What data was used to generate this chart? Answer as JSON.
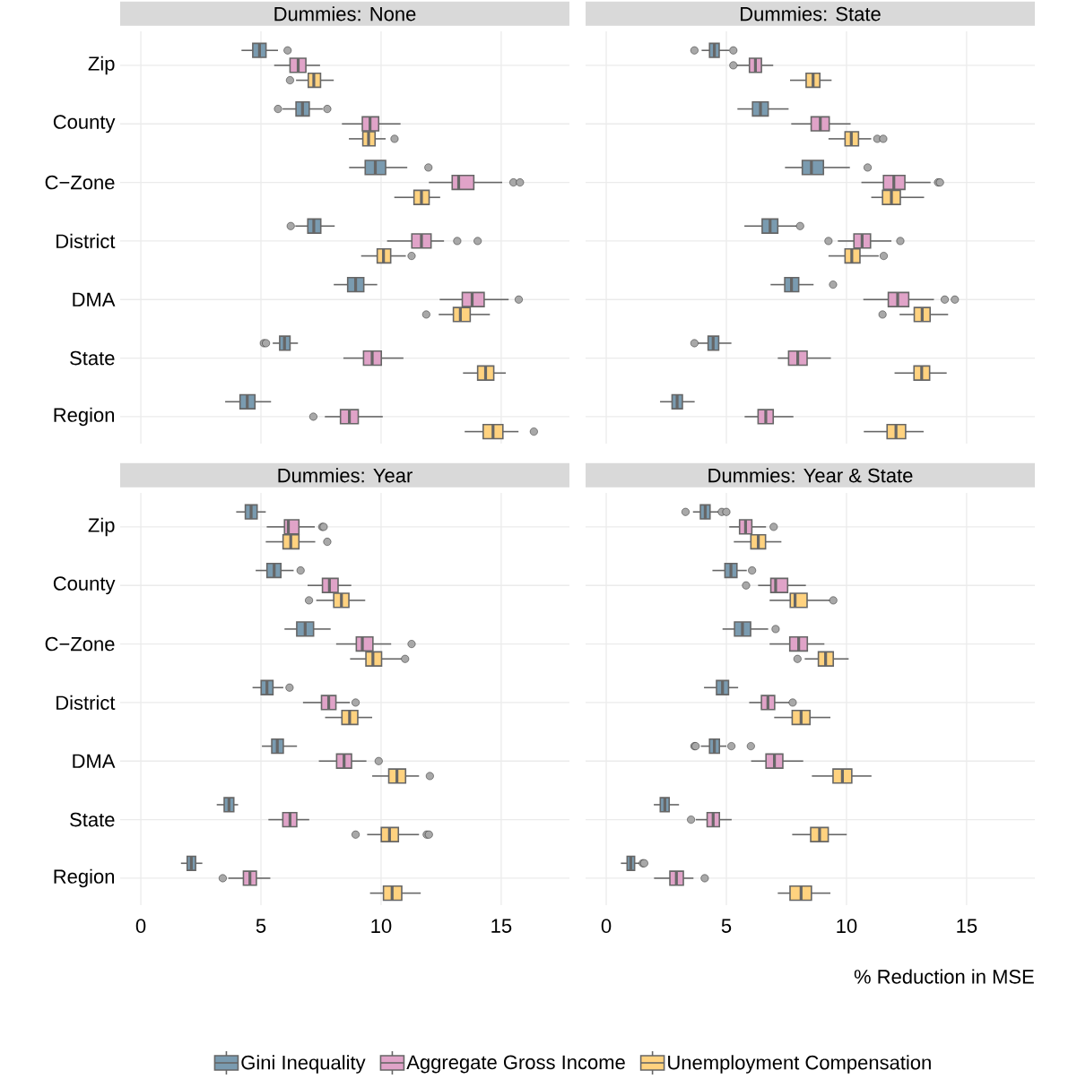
{
  "chart_data": [
    {
      "type": "box",
      "title": "Dummies: None",
      "orientation": "horizontal",
      "categories": [
        "Zip",
        "County",
        "C−Zone",
        "District",
        "DMA",
        "State",
        "Region"
      ],
      "xlim": [
        -0.86,
        17.84
      ],
      "xticks": [
        0,
        5,
        10,
        15
      ],
      "grid": true,
      "tick_labels": "y",
      "series": [
        {
          "color": "#7a9bb0",
          "boxes": [
            {
              "low": 4.19,
              "q1": 4.66,
              "median": 4.94,
              "q3": 5.21,
              "high": 5.71,
              "outliers": [
                6.11
              ]
            },
            {
              "low": 5.9,
              "q1": 6.46,
              "median": 6.73,
              "q3": 7.01,
              "high": 7.57,
              "outliers": [
                5.71,
                7.76
              ]
            },
            {
              "low": 8.67,
              "q1": 9.34,
              "median": 9.76,
              "q3": 10.19,
              "high": 11.09,
              "outliers": [
                11.97
              ]
            },
            {
              "low": 6.43,
              "q1": 6.95,
              "median": 7.2,
              "q3": 7.49,
              "high": 8.07,
              "outliers": [
                6.24
              ]
            },
            {
              "low": 8.03,
              "q1": 8.61,
              "median": 8.94,
              "q3": 9.28,
              "high": 9.84
            },
            {
              "low": 5.49,
              "q1": 5.78,
              "median": 5.98,
              "q3": 6.21,
              "high": 6.54,
              "outliers": [
                5.12,
                5.21
              ]
            },
            {
              "low": 3.51,
              "q1": 4.13,
              "median": 4.43,
              "q3": 4.75,
              "high": 5.42
            }
          ]
        },
        {
          "color": "#e0a3c8",
          "boxes": [
            {
              "low": 5.55,
              "q1": 6.21,
              "median": 6.55,
              "q3": 6.87,
              "high": 7.46
            },
            {
              "low": 8.37,
              "q1": 9.22,
              "median": 9.54,
              "q3": 9.9,
              "high": 10.81
            },
            {
              "low": 11.99,
              "q1": 12.96,
              "median": 13.23,
              "q3": 13.86,
              "high": 15.04,
              "outliers": [
                15.51,
                15.78
              ]
            },
            {
              "low": 10.25,
              "q1": 11.28,
              "median": 11.68,
              "q3": 12.08,
              "high": 12.62,
              "outliers": [
                13.17,
                14.02
              ]
            },
            {
              "low": 12.44,
              "q1": 13.38,
              "median": 13.79,
              "q3": 14.29,
              "high": 15.31,
              "outliers": [
                15.73
              ]
            },
            {
              "low": 8.43,
              "q1": 9.27,
              "median": 9.63,
              "q3": 10.01,
              "high": 10.93
            },
            {
              "low": 7.66,
              "q1": 8.31,
              "median": 8.68,
              "q3": 9.05,
              "high": 10.07,
              "outliers": [
                7.18
              ]
            }
          ]
        },
        {
          "color": "#ffd27f",
          "boxes": [
            {
              "low": 6.46,
              "q1": 6.97,
              "median": 7.2,
              "q3": 7.48,
              "high": 8.03,
              "outliers": [
                6.21
              ]
            },
            {
              "low": 8.66,
              "q1": 9.24,
              "median": 9.48,
              "q3": 9.75,
              "high": 10.19,
              "outliers": [
                10.56
              ]
            },
            {
              "low": 10.55,
              "q1": 11.37,
              "median": 11.68,
              "q3": 12.0,
              "high": 12.46
            },
            {
              "low": 9.17,
              "q1": 9.84,
              "median": 10.1,
              "q3": 10.4,
              "high": 11.03,
              "outliers": [
                11.27
              ]
            },
            {
              "low": 12.4,
              "q1": 13.01,
              "median": 13.3,
              "q3": 13.71,
              "high": 14.53,
              "outliers": [
                11.88
              ]
            },
            {
              "low": 13.41,
              "q1": 14.02,
              "median": 14.35,
              "q3": 14.69,
              "high": 15.19
            },
            {
              "low": 13.48,
              "q1": 14.25,
              "median": 14.66,
              "q3": 15.07,
              "high": 15.72,
              "outliers": [
                16.36
              ]
            }
          ]
        }
      ]
    },
    {
      "type": "box",
      "title": "Dummies: State",
      "orientation": "horizontal",
      "categories": [
        null,
        null,
        null,
        null,
        null,
        null,
        null
      ],
      "xlim": [
        -0.86,
        17.84
      ],
      "xticks": [
        0,
        5,
        10,
        15
      ],
      "grid": true,
      "tick_labels": false,
      "series": [
        {
          "color": "#7a9bb0",
          "boxes": [
            {
              "low": 3.97,
              "q1": 4.3,
              "median": 4.5,
              "q3": 4.7,
              "high": 5.12,
              "outliers": [
                3.67,
                5.29
              ]
            },
            {
              "low": 5.46,
              "q1": 6.09,
              "median": 6.42,
              "q3": 6.74,
              "high": 7.59
            },
            {
              "low": 7.44,
              "q1": 8.16,
              "median": 8.54,
              "q3": 9.04,
              "high": 10.14,
              "outliers": [
                10.88
              ]
            },
            {
              "low": 5.75,
              "q1": 6.49,
              "median": 6.82,
              "q3": 7.14,
              "high": 7.92,
              "outliers": [
                8.07
              ]
            },
            {
              "low": 6.84,
              "q1": 7.43,
              "median": 7.71,
              "q3": 8.01,
              "high": 8.63,
              "outliers": [
                9.44
              ]
            },
            {
              "low": 3.82,
              "q1": 4.24,
              "median": 4.45,
              "q3": 4.68,
              "high": 5.21,
              "outliers": [
                3.67
              ]
            },
            {
              "low": 2.24,
              "q1": 2.74,
              "median": 2.95,
              "q3": 3.17,
              "high": 3.68
            }
          ]
        },
        {
          "color": "#e0a3c8",
          "boxes": [
            {
              "low": 5.44,
              "q1": 5.96,
              "median": 6.21,
              "q3": 6.46,
              "high": 6.95,
              "outliers": [
                5.29
              ]
            },
            {
              "low": 7.7,
              "q1": 8.53,
              "median": 8.91,
              "q3": 9.28,
              "high": 10.17
            },
            {
              "low": 10.62,
              "q1": 11.54,
              "median": 11.97,
              "q3": 12.43,
              "high": 13.5,
              "outliers": [
                13.81,
                13.89
              ]
            },
            {
              "low": 9.64,
              "q1": 10.31,
              "median": 10.65,
              "q3": 11.0,
              "high": 11.87,
              "outliers": [
                9.25,
                12.24
              ]
            },
            {
              "low": 10.7,
              "q1": 11.74,
              "median": 12.13,
              "q3": 12.59,
              "high": 13.64,
              "outliers": [
                14.09,
                14.51
              ]
            },
            {
              "low": 7.14,
              "q1": 7.59,
              "median": 7.97,
              "q3": 8.36,
              "high": 9.35
            },
            {
              "low": 5.76,
              "q1": 6.32,
              "median": 6.64,
              "q3": 6.95,
              "high": 7.79
            }
          ]
        },
        {
          "color": "#ffd27f",
          "boxes": [
            {
              "low": 7.65,
              "q1": 8.32,
              "median": 8.61,
              "q3": 8.89,
              "high": 9.38
            },
            {
              "low": 9.25,
              "q1": 9.94,
              "median": 10.2,
              "q3": 10.5,
              "high": 11.03,
              "outliers": [
                11.28,
                11.53
              ]
            },
            {
              "low": 11.03,
              "q1": 11.5,
              "median": 11.87,
              "q3": 12.24,
              "high": 13.23
            },
            {
              "low": 9.25,
              "q1": 9.94,
              "median": 10.22,
              "q3": 10.56,
              "high": 11.34,
              "outliers": [
                11.55
              ]
            },
            {
              "low": 12.21,
              "q1": 12.82,
              "median": 13.15,
              "q3": 13.48,
              "high": 14.23,
              "outliers": [
                11.5
              ]
            },
            {
              "low": 12.0,
              "q1": 12.81,
              "median": 13.13,
              "q3": 13.46,
              "high": 14.17
            },
            {
              "low": 10.72,
              "q1": 11.69,
              "median": 12.06,
              "q3": 12.46,
              "high": 13.21
            }
          ]
        }
      ]
    },
    {
      "type": "box",
      "title": "Dummies: Year",
      "orientation": "horizontal",
      "categories": [
        "Zip",
        "County",
        "C−Zone",
        "District",
        "DMA",
        "State",
        "Region"
      ],
      "xlim": [
        -0.86,
        17.84
      ],
      "xticks": [
        0,
        5,
        10,
        15
      ],
      "grid": true,
      "series": [
        {
          "color": "#7a9bb0",
          "boxes": [
            {
              "low": 3.97,
              "q1": 4.35,
              "median": 4.59,
              "q3": 4.84,
              "high": 5.2
            },
            {
              "low": 4.78,
              "q1": 5.25,
              "median": 5.55,
              "q3": 5.83,
              "high": 6.36,
              "outliers": [
                6.65
              ]
            },
            {
              "low": 5.98,
              "q1": 6.49,
              "median": 6.84,
              "q3": 7.19,
              "high": 7.9
            },
            {
              "low": 4.65,
              "q1": 5.01,
              "median": 5.25,
              "q3": 5.5,
              "high": 5.93,
              "outliers": [
                6.19
              ]
            },
            {
              "low": 5.04,
              "q1": 5.45,
              "median": 5.68,
              "q3": 5.93,
              "high": 6.5
            },
            {
              "low": 3.16,
              "q1": 3.47,
              "median": 3.67,
              "q3": 3.87,
              "high": 4.05
            },
            {
              "low": 1.67,
              "q1": 1.93,
              "median": 2.1,
              "q3": 2.28,
              "high": 2.56
            }
          ]
        },
        {
          "color": "#e0a3c8",
          "boxes": [
            {
              "low": 5.24,
              "q1": 5.98,
              "median": 6.14,
              "q3": 6.58,
              "high": 7.24,
              "outliers": [
                7.55,
                7.61
              ]
            },
            {
              "low": 6.94,
              "q1": 7.56,
              "median": 7.85,
              "q3": 8.21,
              "high": 8.76
            },
            {
              "low": 8.13,
              "q1": 8.97,
              "median": 9.22,
              "q3": 9.66,
              "high": 10.42,
              "outliers": [
                11.27
              ]
            },
            {
              "low": 6.75,
              "q1": 7.52,
              "median": 7.82,
              "q3": 8.12,
              "high": 8.7,
              "outliers": [
                8.94
              ]
            },
            {
              "low": 7.41,
              "q1": 8.15,
              "median": 8.46,
              "q3": 8.77,
              "high": 9.39,
              "outliers": [
                9.9
              ]
            },
            {
              "low": 5.31,
              "q1": 5.91,
              "median": 6.21,
              "q3": 6.49,
              "high": 7.01
            },
            {
              "low": 3.64,
              "q1": 4.27,
              "median": 4.54,
              "q3": 4.81,
              "high": 5.39,
              "outliers": [
                3.41
              ]
            }
          ]
        },
        {
          "color": "#ffd27f",
          "boxes": [
            {
              "low": 5.2,
              "q1": 5.92,
              "median": 6.24,
              "q3": 6.58,
              "high": 7.26,
              "outliers": [
                7.76
              ]
            },
            {
              "low": 7.3,
              "q1": 8.03,
              "median": 8.35,
              "q3": 8.66,
              "high": 9.34,
              "outliers": [
                7.0
              ]
            },
            {
              "low": 8.71,
              "q1": 9.37,
              "median": 9.66,
              "q3": 10.02,
              "high": 10.85,
              "outliers": [
                11.0
              ]
            },
            {
              "low": 7.67,
              "q1": 8.37,
              "median": 8.69,
              "q3": 9.03,
              "high": 9.63
            },
            {
              "low": 9.63,
              "q1": 10.32,
              "median": 10.66,
              "q3": 11.02,
              "high": 11.58,
              "outliers": [
                12.03
              ]
            },
            {
              "low": 9.42,
              "q1": 10.01,
              "median": 10.35,
              "q3": 10.72,
              "high": 11.58,
              "outliers": [
                8.94,
                11.9,
                11.99
              ]
            },
            {
              "low": 9.54,
              "q1": 10.1,
              "median": 10.46,
              "q3": 10.86,
              "high": 11.65
            }
          ]
        }
      ]
    },
    {
      "type": "box",
      "title": "Dummies: Year & State",
      "xlabel": "% Reduction in MSE",
      "orientation": "horizontal",
      "categories": [
        null,
        null,
        null,
        null,
        null,
        null,
        null
      ],
      "xlim": [
        -0.86,
        17.84
      ],
      "xticks": [
        0,
        5,
        10,
        15
      ],
      "grid": true,
      "tick_labels": "x",
      "legend": "bottom",
      "series": [
        {
          "name": "Gini Inequality",
          "color": "#7a9bb0",
          "boxes": [
            {
              "low": 3.61,
              "q1": 3.92,
              "median": 4.12,
              "q3": 4.32,
              "high": 4.75,
              "outliers": [
                3.3,
                4.81,
                5.0
              ]
            },
            {
              "low": 4.42,
              "q1": 4.94,
              "median": 5.19,
              "q3": 5.44,
              "high": 5.85,
              "outliers": [
                6.07
              ]
            },
            {
              "low": 4.84,
              "q1": 5.34,
              "median": 5.67,
              "q3": 6.01,
              "high": 6.74,
              "outliers": [
                7.05
              ]
            },
            {
              "low": 4.07,
              "q1": 4.59,
              "median": 4.84,
              "q3": 5.09,
              "high": 5.49
            },
            {
              "low": 3.94,
              "q1": 4.3,
              "median": 4.5,
              "q3": 4.71,
              "high": 5.0,
              "outliers": [
                3.67,
                3.72,
                5.21,
                6.02
              ]
            },
            {
              "low": 1.98,
              "q1": 2.25,
              "median": 2.44,
              "q3": 2.62,
              "high": 3.03
            },
            {
              "low": 0.61,
              "q1": 0.87,
              "median": 1.02,
              "q3": 1.18,
              "high": 1.39,
              "outliers": [
                1.52,
                1.58
              ]
            }
          ]
        },
        {
          "name": "Aggregate Gross Income",
          "color": "#e0a3c8",
          "boxes": [
            {
              "low": 5.12,
              "q1": 5.55,
              "median": 5.8,
              "q3": 6.06,
              "high": 6.65,
              "outliers": [
                6.97
              ]
            },
            {
              "low": 6.32,
              "q1": 6.85,
              "median": 7.05,
              "q3": 7.55,
              "high": 8.31,
              "outliers": [
                5.82
              ]
            },
            {
              "low": 6.8,
              "q1": 7.64,
              "median": 8.01,
              "q3": 8.37,
              "high": 9.08
            },
            {
              "low": 5.95,
              "q1": 6.46,
              "median": 6.73,
              "q3": 7.01,
              "high": 7.61,
              "outliers": [
                7.76
              ]
            },
            {
              "low": 6.03,
              "q1": 6.65,
              "median": 7.0,
              "q3": 7.35,
              "high": 8.2
            },
            {
              "low": 3.73,
              "q1": 4.2,
              "median": 4.45,
              "q3": 4.71,
              "high": 5.22,
              "outliers": [
                3.53
              ]
            },
            {
              "low": 1.99,
              "q1": 2.65,
              "median": 2.92,
              "q3": 3.21,
              "high": 3.63,
              "outliers": [
                4.1
              ]
            }
          ]
        },
        {
          "name": "Unemployment Compensation",
          "color": "#ffd27f",
          "boxes": [
            {
              "low": 5.31,
              "q1": 6.02,
              "median": 6.33,
              "q3": 6.63,
              "high": 7.29
            },
            {
              "low": 6.8,
              "q1": 7.66,
              "median": 7.86,
              "q3": 8.36,
              "high": 9.35,
              "outliers": [
                9.45
              ]
            },
            {
              "low": 8.26,
              "q1": 8.83,
              "median": 9.13,
              "q3": 9.45,
              "high": 10.09,
              "outliers": [
                7.96
              ]
            },
            {
              "low": 6.99,
              "q1": 7.74,
              "median": 8.11,
              "q3": 8.48,
              "high": 9.33
            },
            {
              "low": 8.56,
              "q1": 9.44,
              "median": 9.83,
              "q3": 10.22,
              "high": 11.04
            },
            {
              "low": 7.74,
              "q1": 8.51,
              "median": 8.88,
              "q3": 9.24,
              "high": 10.01
            },
            {
              "low": 7.14,
              "q1": 7.65,
              "median": 8.11,
              "q3": 8.54,
              "high": 9.33
            }
          ]
        }
      ]
    }
  ]
}
